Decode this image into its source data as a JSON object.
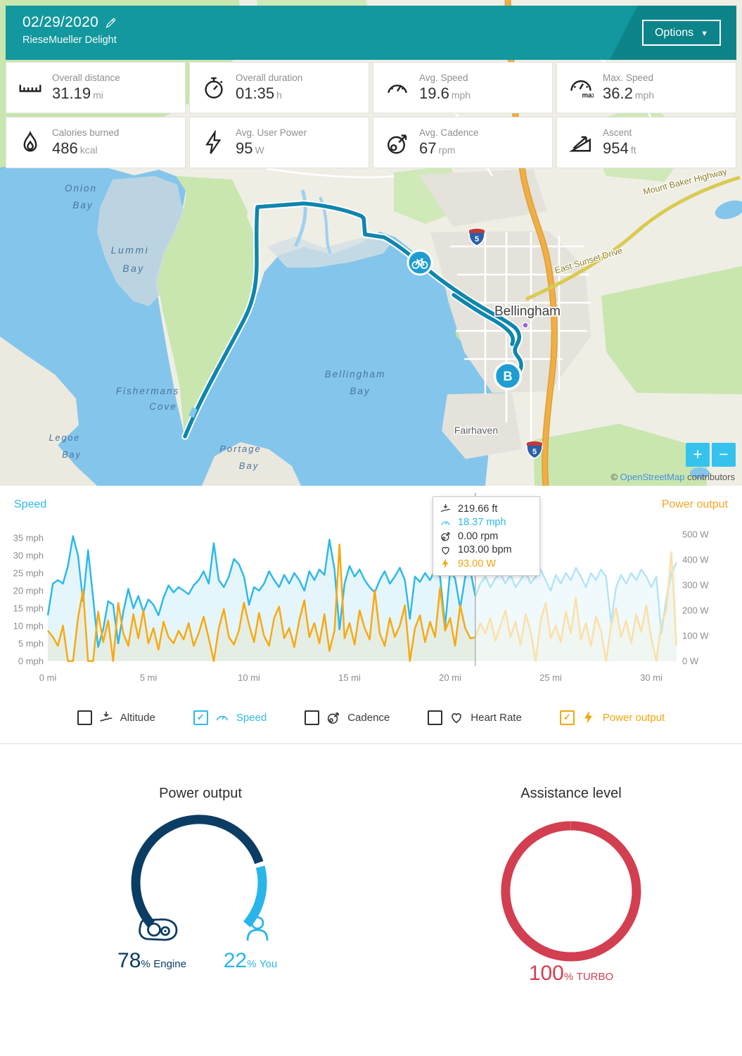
{
  "header": {
    "date": "02/29/2020",
    "bike_name": "RieseMueller Delight",
    "options_label": "Options"
  },
  "stats": [
    {
      "label": "Overall distance",
      "value": "31.19",
      "unit": "mi"
    },
    {
      "label": "Overall duration",
      "value": "01:35",
      "unit": "h"
    },
    {
      "label": "Avg. Speed",
      "value": "19.6",
      "unit": "mph"
    },
    {
      "label": "Max. Speed",
      "value": "36.2",
      "unit": "mph"
    },
    {
      "label": "Calories burned",
      "value": "486",
      "unit": "kcal"
    },
    {
      "label": "Avg. User Power",
      "value": "95",
      "unit": "W"
    },
    {
      "label": "Avg. Cadence",
      "value": "67",
      "unit": "rpm"
    },
    {
      "label": "Ascent",
      "value": "954",
      "unit": "ft"
    }
  ],
  "map": {
    "labels": {
      "onion_1": "Onion",
      "onion_2": "Bay",
      "lummi_1": "Lummi",
      "lummi_2": "Bay",
      "bbay_1": "Bellingham",
      "bbay_2": "Bay",
      "fish_1": "Fishermans",
      "fish_2": "Cove",
      "legoe_1": "Legoe",
      "legoe_2": "Bay",
      "portage_1": "Portage",
      "portage_2": "Bay",
      "bellingham": "Bellingham",
      "fairhaven": "Fairhaven",
      "mount_baker": "Mount Baker Highway",
      "east_sunset": "East Sunset Drive",
      "i5": "5"
    },
    "end_marker": "B",
    "zoom_in": "+",
    "zoom_out": "−",
    "attribution": {
      "prefix": "© ",
      "link": "OpenStreetMap",
      "suffix": " contributors"
    }
  },
  "chart": {
    "left_title": "Speed",
    "right_title": "Power output",
    "tooltip": {
      "rows": [
        {
          "icon": "altitude-icon",
          "text": "219.66 ft"
        },
        {
          "icon": "speed-icon",
          "text": "18.37 mph"
        },
        {
          "icon": "cadence-icon",
          "text": "0.00 rpm"
        },
        {
          "icon": "heart-icon",
          "text": "103.00 bpm"
        },
        {
          "icon": "power-icon",
          "text": "93.00 W"
        }
      ]
    },
    "legend": [
      {
        "label": "Altitude",
        "checked": false
      },
      {
        "label": "Speed",
        "checked": true,
        "color": "#2fb9e9"
      },
      {
        "label": "Cadence",
        "checked": false
      },
      {
        "label": "Heart Rate",
        "checked": false
      },
      {
        "label": "Power output",
        "checked": true,
        "color": "#f0a70a"
      }
    ]
  },
  "chart_data": {
    "type": "line",
    "x_unit": "mi",
    "x_step": 0.25,
    "x_max": 31.25,
    "x_ticks": [
      0,
      5,
      10,
      15,
      20,
      25,
      30
    ],
    "cursor_mi": 21.25,
    "grid": false,
    "series": [
      {
        "name": "Speed",
        "axis": "left",
        "unit": "mph",
        "color": "#2fb9e9",
        "ylim": [
          0,
          35
        ],
        "tick_step": 5,
        "values": [
          13,
          22,
          23,
          22,
          27,
          35.5,
          30,
          17,
          31.5,
          18,
          4,
          9,
          17,
          16,
          5,
          14,
          20.5,
          15,
          18.5,
          14,
          17.5,
          16,
          13,
          18,
          21.5,
          19.5,
          21,
          20,
          19,
          21.5,
          23,
          25.5,
          22,
          33.5,
          23,
          21,
          24,
          29,
          27.5,
          24,
          16,
          21,
          20,
          22,
          25.5,
          23,
          21,
          24.5,
          22,
          25,
          23,
          20,
          25.5,
          23,
          26,
          24.5,
          34.5,
          26,
          9,
          22,
          27,
          24,
          26,
          23,
          21,
          19.5,
          23,
          25.5,
          22,
          24,
          26.5,
          23,
          12,
          24,
          22.5,
          25,
          23,
          26,
          24,
          10,
          25.5,
          23.5,
          15,
          24,
          26,
          18.4,
          22,
          24,
          21,
          23.5,
          25,
          22,
          24.5,
          21,
          23,
          25.5,
          22,
          24,
          26,
          23,
          20,
          24.5,
          22,
          25,
          23,
          26.5,
          24,
          21,
          25,
          23,
          26,
          24,
          11,
          21,
          24.5,
          22,
          25,
          23,
          26,
          24,
          21,
          24,
          8,
          18,
          25,
          28
        ]
      },
      {
        "name": "Power output",
        "axis": "right",
        "unit": "W",
        "color": "#f8a912",
        "ylim": [
          0,
          500
        ],
        "tick_step": 100,
        "values": [
          120,
          95,
          60,
          140,
          0,
          0,
          170,
          280,
          0,
          0,
          195,
          75,
          160,
          0,
          230,
          110,
          60,
          185,
          90,
          200,
          70,
          130,
          45,
          155,
          95,
          70,
          120,
          85,
          150,
          60,
          110,
          175,
          90,
          0,
          130,
          205,
          95,
          65,
          120,
          230,
          145,
          75,
          190,
          100,
          60,
          170,
          215,
          90,
          130,
          55,
          160,
          240,
          95,
          150,
          70,
          185,
          40,
          120,
          460,
          90,
          150,
          65,
          200,
          130,
          85,
          280,
          110,
          60,
          170,
          95,
          140,
          220,
          0,
          130,
          180,
          75,
          155,
          95,
          290,
          120,
          170,
          60,
          220,
          130,
          90,
          93,
          150,
          110,
          170,
          80,
          140,
          200,
          95,
          155,
          65,
          185,
          120,
          0,
          160,
          230,
          90,
          140,
          75,
          195,
          110,
          250,
          85,
          150,
          60,
          175,
          120,
          0,
          140,
          210,
          95,
          160,
          70,
          185,
          115,
          220,
          90,
          0,
          150,
          200,
          430,
          60
        ]
      }
    ]
  },
  "gauges": {
    "power": {
      "title": "Power output",
      "engine_value": "78",
      "engine_unit": "%",
      "engine_label": "Engine",
      "engine_pct": 78,
      "engine_color": "#0b3c64",
      "you_value": "22",
      "you_unit": "%",
      "you_label": "You",
      "you_pct": 22,
      "you_color": "#29b5ea"
    },
    "assistance": {
      "title": "Assistance level",
      "value": "100",
      "unit": "%",
      "label": "TURBO",
      "pct": 100,
      "color": "#d23f51"
    }
  }
}
